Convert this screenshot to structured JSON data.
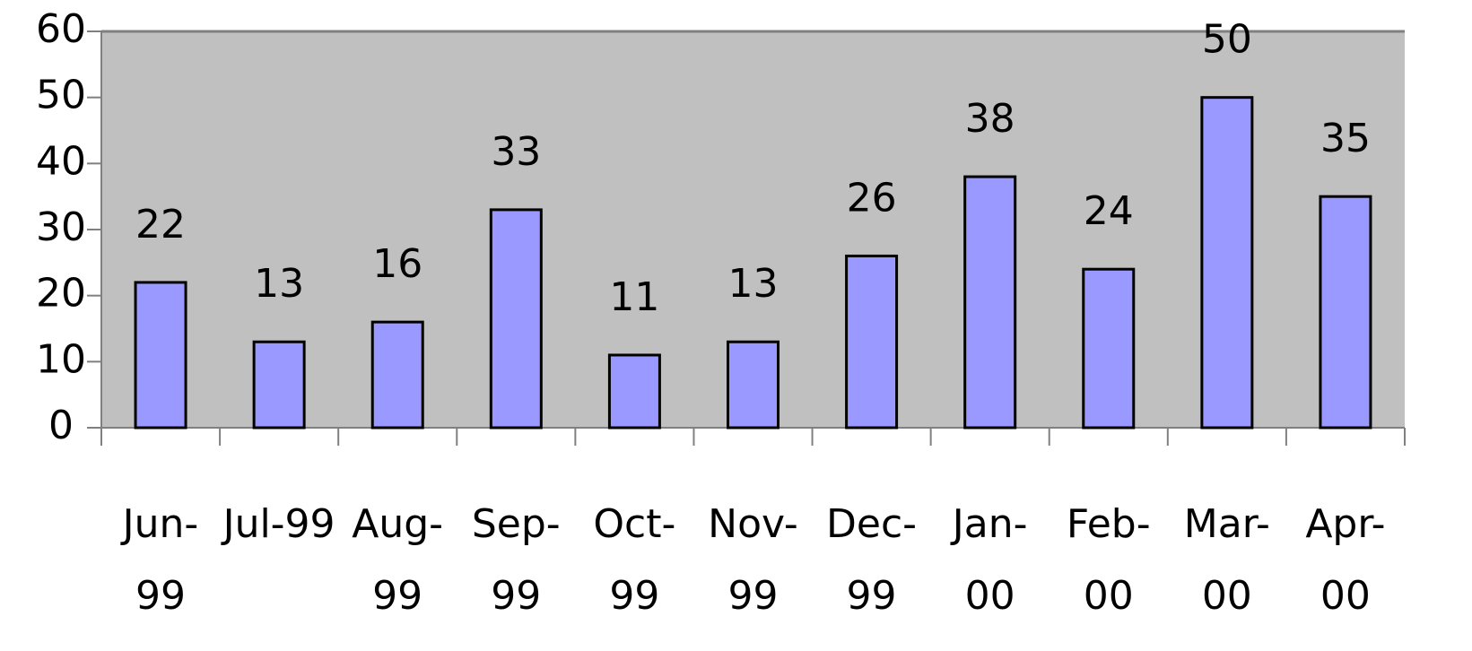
{
  "chart_data": {
    "type": "bar",
    "categories": [
      "Jun-99",
      "Jul-99",
      "Aug-99",
      "Sep-99",
      "Oct-99",
      "Nov-99",
      "Dec-99",
      "Jan-00",
      "Feb-00",
      "Mar-00",
      "Apr-00"
    ],
    "values": [
      22,
      13,
      16,
      33,
      11,
      13,
      26,
      38,
      24,
      50,
      35
    ],
    "color": "#9999ff",
    "plot_background": "#c0c0c0",
    "ylim": [
      0,
      60
    ],
    "yticks": [
      0,
      10,
      20,
      30,
      40,
      50,
      60
    ],
    "grid": false
  }
}
